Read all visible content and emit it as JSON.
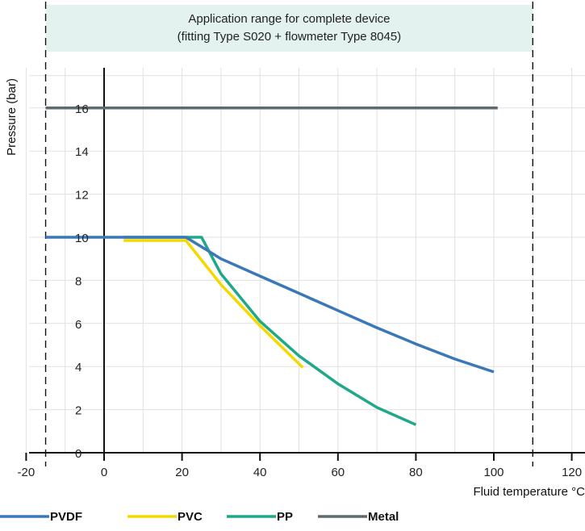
{
  "chart_data": {
    "type": "line",
    "title": "",
    "xlabel": "Fluid temperature °C",
    "ylabel": "Pressure (bar)",
    "xlim": [
      -20,
      120
    ],
    "ylim": [
      0,
      17.5
    ],
    "x_ticks": [
      "-20",
      "0",
      "20",
      "40",
      "60",
      "80",
      "100",
      "120"
    ],
    "y_ticks": [
      "0",
      "2",
      "4",
      "6",
      "8",
      "10",
      "12",
      "14",
      "16"
    ],
    "grid": true,
    "legend_placement": "bottom",
    "application_range": {
      "label_line1": "Application range for complete device",
      "label_line2": "(fitting Type S020 + flowmeter Type 8045)",
      "x_min": -15,
      "x_max": 110,
      "color": "#e3f2ee"
    },
    "series": [
      {
        "name": "PVDF",
        "color": "#3a78b8",
        "points": [
          [
            -15,
            10
          ],
          [
            21,
            10
          ],
          [
            30,
            9
          ],
          [
            40,
            8.2
          ],
          [
            50,
            7.4
          ],
          [
            60,
            6.6
          ],
          [
            70,
            5.8
          ],
          [
            80,
            5.05
          ],
          [
            90,
            4.35
          ],
          [
            100,
            3.75
          ]
        ]
      },
      {
        "name": "PVC",
        "color": "#f5d800",
        "points": [
          [
            5,
            9.85
          ],
          [
            21,
            9.85
          ],
          [
            30,
            7.8
          ],
          [
            40,
            5.9
          ],
          [
            51,
            3.95
          ]
        ]
      },
      {
        "name": "PP",
        "color": "#1fa88a",
        "points": [
          [
            5,
            10
          ],
          [
            25,
            10
          ],
          [
            30,
            8.3
          ],
          [
            40,
            6.1
          ],
          [
            50,
            4.5
          ],
          [
            60,
            3.2
          ],
          [
            70,
            2.1
          ],
          [
            80,
            1.3
          ]
        ]
      },
      {
        "name": "Metal",
        "color": "#5f6a70",
        "points": [
          [
            -15,
            16
          ],
          [
            101,
            16
          ]
        ]
      }
    ]
  }
}
